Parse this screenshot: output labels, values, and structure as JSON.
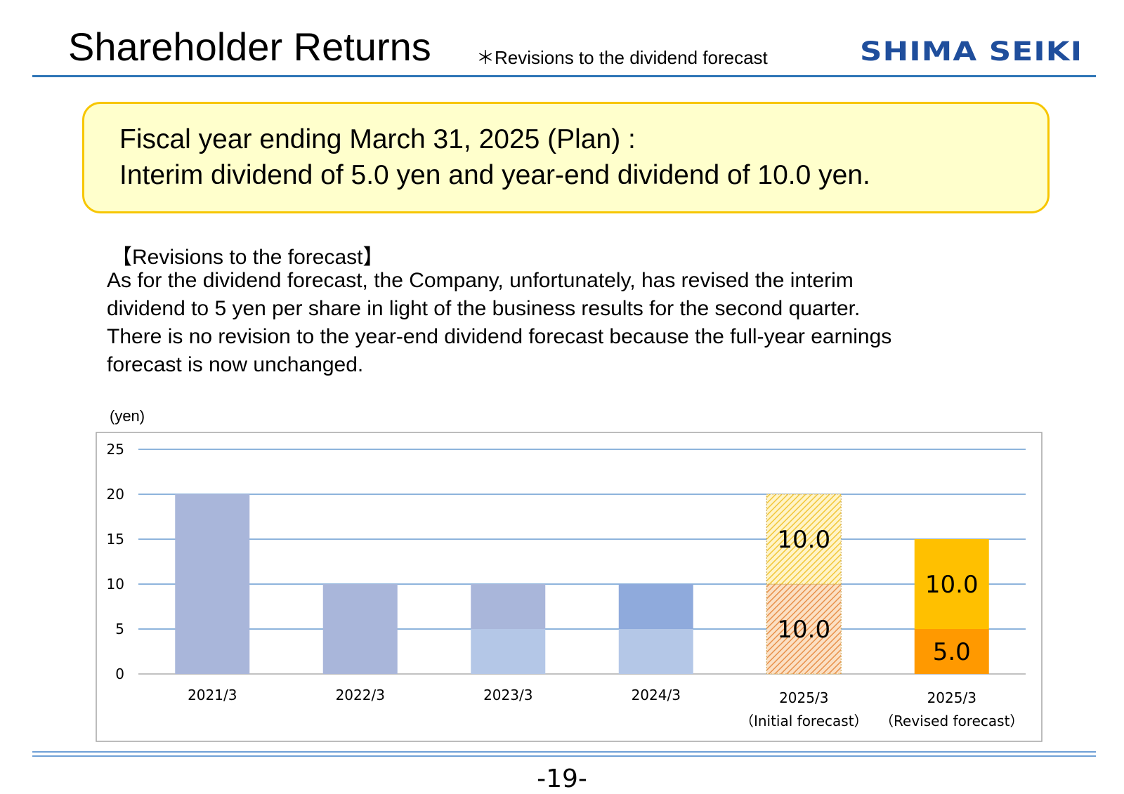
{
  "header": {
    "title": "Shareholder Returns",
    "subtitle": "＊Revisions to the dividend forecast",
    "logo_text": "SHIMA SEIKI"
  },
  "highlight": {
    "line1": "Fiscal year ending March 31, 2025 (Plan) :",
    "line2": "Interim dividend of 5.0 yen and year-end dividend of 10.0 yen."
  },
  "revision": {
    "heading": "【Revisions to the forecast】",
    "lines": [
      "As for the dividend forecast, the Company, unfortunately, has revised the interim",
      "dividend to 5 yen per share in light of the business results for the second quarter.",
      "There is no revision to the year-end dividend forecast because the full-year earnings",
      "forecast is now unchanged."
    ]
  },
  "chart_data": {
    "type": "bar",
    "stacked": true,
    "ylabel": "(yen)",
    "ylim": [
      0,
      25
    ],
    "yticks": [
      0,
      5,
      10,
      15,
      20,
      25
    ],
    "grid": true,
    "categories": [
      [
        "2021/3"
      ],
      [
        "2022/3"
      ],
      [
        "2023/3"
      ],
      [
        "2024/3"
      ],
      [
        "2025/3",
        "（Initial forecast）"
      ],
      [
        "2025/3",
        "（Revised forecast）"
      ]
    ],
    "bars": [
      {
        "segments": [
          {
            "value": 20,
            "color": "#a9b6da"
          }
        ]
      },
      {
        "segments": [
          {
            "value": 10,
            "color": "#a9b6da"
          }
        ]
      },
      {
        "segments": [
          {
            "value": 5,
            "color": "#b4c7e7"
          },
          {
            "value": 5,
            "color": "#a9b6da"
          }
        ]
      },
      {
        "segments": [
          {
            "value": 5,
            "color": "#b4c7e7"
          },
          {
            "value": 5,
            "color": "#8faadc"
          }
        ]
      },
      {
        "segments": [
          {
            "value": 10,
            "color": "#f4b183",
            "pattern": "hatched",
            "label": "10.0"
          },
          {
            "value": 10,
            "color": "#ffd966",
            "pattern": "hatched",
            "label": "10.0"
          }
        ]
      },
      {
        "segments": [
          {
            "value": 5,
            "color": "#ff9900",
            "label": "5.0"
          },
          {
            "value": 10,
            "color": "#ffc000",
            "label": "10.0"
          }
        ]
      }
    ]
  },
  "footer": {
    "page_number": "-19-"
  }
}
